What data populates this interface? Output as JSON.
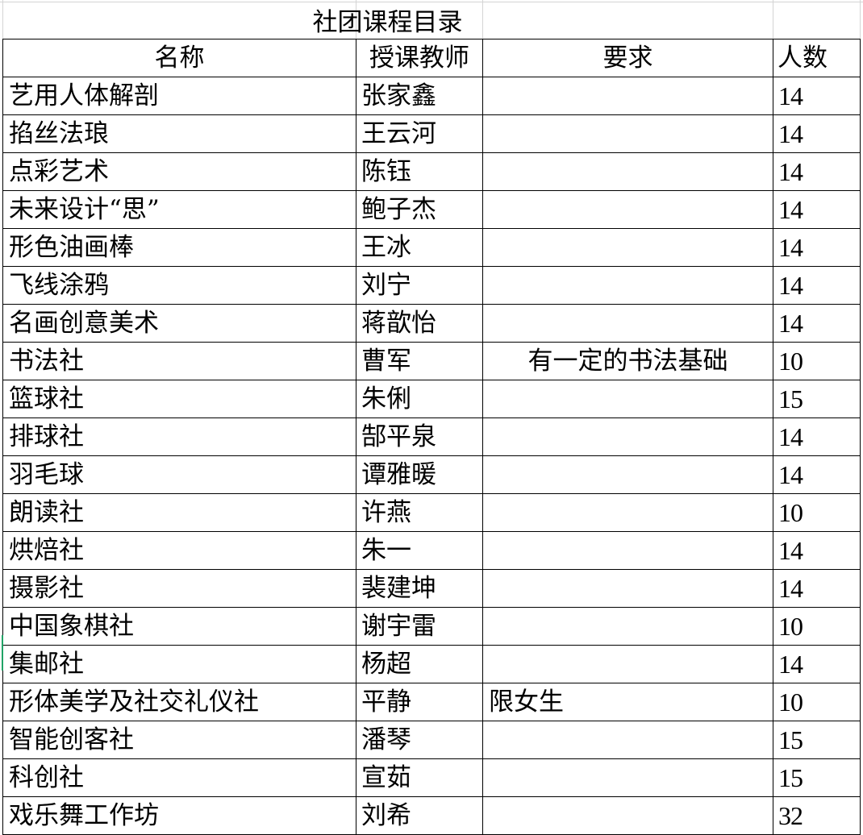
{
  "title": "社团课程目录",
  "headers": [
    "名称",
    "授课教师",
    "要求",
    "人数"
  ],
  "rows": [
    {
      "name": "艺用人体解剖",
      "teacher": "张家鑫",
      "requirement": "",
      "count": "14"
    },
    {
      "name": "掐丝法琅",
      "teacher": "王云河",
      "requirement": "",
      "count": "14"
    },
    {
      "name": "点彩艺术",
      "teacher": "陈钰",
      "requirement": "",
      "count": "14"
    },
    {
      "name": "未来设计“思”",
      "teacher": "鲍子杰",
      "requirement": "",
      "count": "14"
    },
    {
      "name": "形色油画棒",
      "teacher": "王冰",
      "requirement": "",
      "count": "14"
    },
    {
      "name": "飞线涂鸦",
      "teacher": "刘宁",
      "requirement": "",
      "count": "14"
    },
    {
      "name": "名画创意美术",
      "teacher": "蒋歆怡",
      "requirement": "",
      "count": "14"
    },
    {
      "name": "书法社",
      "teacher": "曹军",
      "requirement": "有一定的书法基础",
      "count": "10"
    },
    {
      "name": "篮球社",
      "teacher": "朱俐",
      "requirement": "",
      "count": "15"
    },
    {
      "name": "排球社",
      "teacher": "郜平泉",
      "requirement": "",
      "count": "14"
    },
    {
      "name": "羽毛球",
      "teacher": "谭雅暖",
      "requirement": "",
      "count": "14"
    },
    {
      "name": "朗读社",
      "teacher": "许燕",
      "requirement": "",
      "count": "10"
    },
    {
      "name": "烘焙社",
      "teacher": "朱一",
      "requirement": "",
      "count": "14"
    },
    {
      "name": "摄影社",
      "teacher": "裴建坤",
      "requirement": "",
      "count": "14"
    },
    {
      "name": "中国象棋社",
      "teacher": "谢宇雷",
      "requirement": "",
      "count": "10"
    },
    {
      "name": "集邮社",
      "teacher": "杨超",
      "requirement": "",
      "count": "14"
    },
    {
      "name": "形体美学及社交礼仪社",
      "teacher": "平静",
      "requirement": "限女生",
      "count": "10"
    },
    {
      "name": "智能创客社",
      "teacher": "潘琴",
      "requirement": "",
      "count": "15"
    },
    {
      "name": "科创社",
      "teacher": "宣茹",
      "requirement": "",
      "count": "15"
    },
    {
      "name": "戏乐舞工作坊",
      "teacher": "刘希",
      "requirement": "",
      "count": "32"
    }
  ]
}
